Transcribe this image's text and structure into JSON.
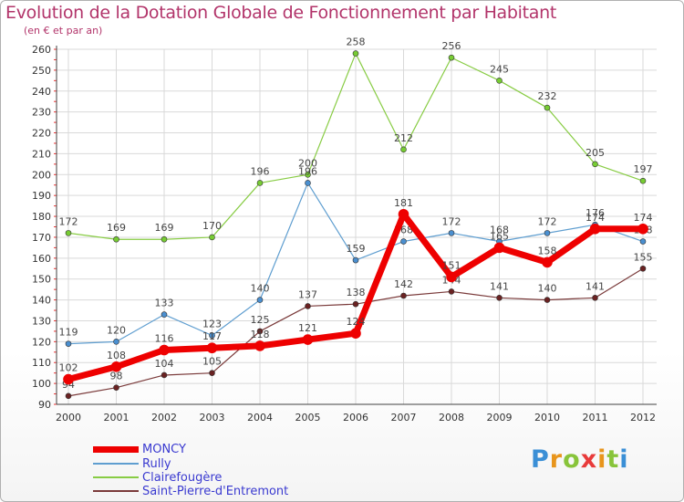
{
  "title": "Evolution de la Dotation Globale de Fonctionnement par Habitant",
  "subtitle": "(en € et par an)",
  "logo_text": "Proxiti",
  "colors": {
    "title": "#b2346a",
    "legend_text": "#3a3ad0",
    "axis": "#404040",
    "grid": "#d9d9d9"
  },
  "chart_data": {
    "type": "line",
    "x": [
      "2000",
      "2001",
      "2002",
      "2003",
      "2004",
      "2005",
      "2006",
      "2007",
      "2008",
      "2009",
      "2010",
      "2011",
      "2012"
    ],
    "ylim": [
      90,
      260
    ],
    "yticks": [
      90,
      100,
      110,
      120,
      130,
      140,
      150,
      160,
      170,
      180,
      190,
      200,
      210,
      220,
      230,
      240,
      250,
      260
    ],
    "grid": true,
    "legend_position": "bottom-left",
    "series": [
      {
        "name": "Clairefougère",
        "color": "#88cc44",
        "marker": "#77cc33",
        "width": 1.2,
        "values": [
          172,
          169,
          169,
          170,
          196,
          200,
          258,
          212,
          256,
          245,
          232,
          205,
          197
        ]
      },
      {
        "name": "Rully",
        "color": "#5f9ed0",
        "marker": "#4a8fd0",
        "width": 1.2,
        "values": [
          119,
          120,
          133,
          123,
          140,
          196,
          159,
          168,
          172,
          168,
          172,
          176,
          168
        ]
      },
      {
        "name": "Saint-Pierre-d'Entremont",
        "color": "#7a3a3a",
        "marker": "#6a2222",
        "width": 1.2,
        "values": [
          94,
          98,
          104,
          105,
          125,
          137,
          138,
          142,
          144,
          141,
          140,
          141,
          155
        ]
      },
      {
        "name": "MONCY",
        "color": "#ee0000",
        "marker": "#ee0000",
        "width": 7,
        "values": [
          102,
          108,
          116,
          117,
          118,
          121,
          124,
          181,
          151,
          165,
          158,
          174,
          174
        ]
      }
    ],
    "legend_order": [
      "MONCY",
      "Rully",
      "Clairefougère",
      "Saint-Pierre-d'Entremont"
    ]
  }
}
